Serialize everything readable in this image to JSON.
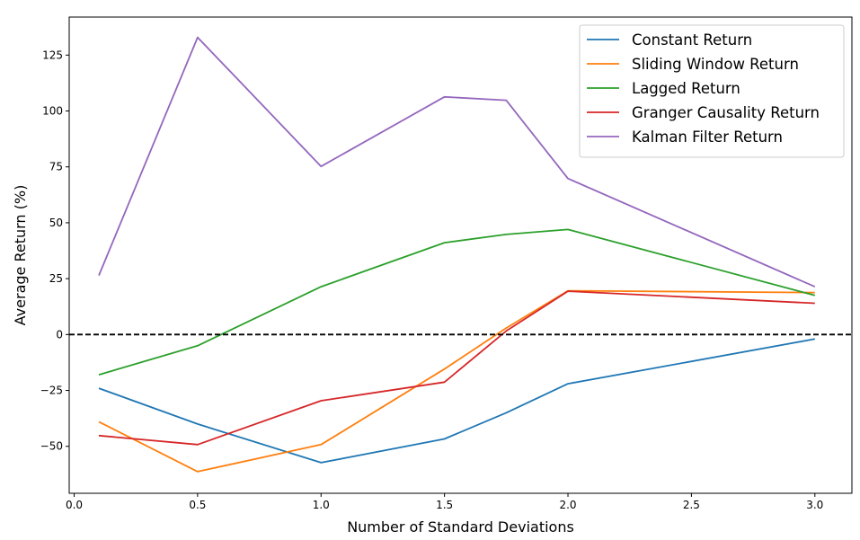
{
  "chart_data": {
    "type": "line",
    "xlabel": "Number of Standard Deviations",
    "ylabel": "Average Return (%)",
    "xlim": [
      -0.02,
      3.15
    ],
    "ylim": [
      -71,
      142
    ],
    "xticks": [
      0.0,
      0.5,
      1.0,
      1.5,
      2.0,
      2.5,
      3.0
    ],
    "xtick_labels": [
      "0.0",
      "0.5",
      "1.0",
      "1.5",
      "2.0",
      "2.5",
      "3.0"
    ],
    "yticks": [
      -50,
      -25,
      0,
      25,
      50,
      75,
      100,
      125
    ],
    "ytick_labels": [
      "−50",
      "−25",
      "0",
      "25",
      "50",
      "75",
      "100",
      "125"
    ],
    "x": [
      0.1,
      0.5,
      1.0,
      1.5,
      1.75,
      2.0,
      3.0
    ],
    "reference_line": {
      "y": 0,
      "style": "dashed",
      "color": "#000000"
    },
    "legend_position": "top-right",
    "grid": false,
    "series": [
      {
        "name": "Constant Return",
        "color": "#1f77b4",
        "values": [
          -24,
          -40,
          -57.3,
          -46.7,
          -35,
          -22,
          -2
        ]
      },
      {
        "name": "Sliding Window Return",
        "color": "#ff7f0e",
        "values": [
          -39,
          -61.3,
          -49.2,
          -15.4,
          2.9,
          19.6,
          18.8
        ]
      },
      {
        "name": "Lagged Return",
        "color": "#2ca02c",
        "values": [
          -18,
          -5,
          21.4,
          41.1,
          44.8,
          47,
          17.5
        ]
      },
      {
        "name": "Granger Causality Return",
        "color": "#d62728",
        "values": [
          -45.2,
          -49.2,
          -29.6,
          -21.3,
          1.6,
          19.4,
          14
        ]
      },
      {
        "name": "Kalman Filter Return",
        "color": "#9467bd",
        "values": [
          26.4,
          132.9,
          75.2,
          106.3,
          104.8,
          69.8,
          21.4
        ]
      }
    ]
  }
}
